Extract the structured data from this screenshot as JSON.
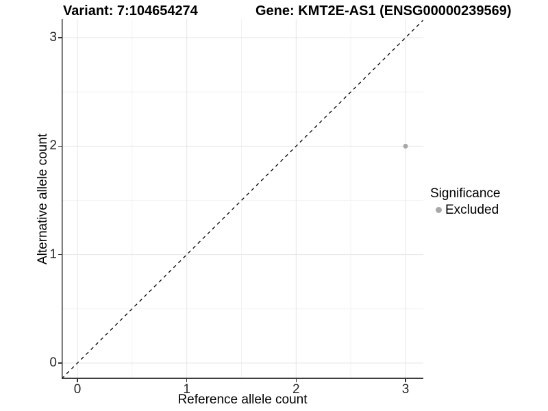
{
  "chart_data": {
    "type": "scatter",
    "titles": {
      "left": "Variant: 7:104654274",
      "right": "Gene: KMT2E-AS1 (ENSG00000239569)"
    },
    "xlabel": "Reference allele count",
    "ylabel": "Alternative allele count",
    "x_ticks": [
      0,
      1,
      2,
      3
    ],
    "y_ticks": [
      0,
      1,
      2,
      3
    ],
    "x_minor_ticks": [
      0.5,
      1.5,
      2.5
    ],
    "y_minor_ticks": [
      0.5,
      1.5,
      2.5
    ],
    "xlim": [
      -0.14,
      3.16
    ],
    "ylim": [
      -0.15,
      3.17
    ],
    "grid": "major and minor, light gray on white",
    "identity_line": {
      "equation": "y = x",
      "style": "dashed",
      "color": "#000000"
    },
    "points": [
      {
        "x": 3,
        "y": 2,
        "significance": "Excluded"
      }
    ],
    "legend": {
      "title": "Significance",
      "position": "right",
      "entries": [
        {
          "label": "Excluded",
          "color": "#a8a8a8"
        }
      ]
    },
    "colors": {
      "point": "#a8a8a8",
      "grid_major": "#e6e6e6",
      "grid_minor": "#f2f2f2",
      "axis_line": "#333333",
      "tick_text": "#262626"
    }
  }
}
